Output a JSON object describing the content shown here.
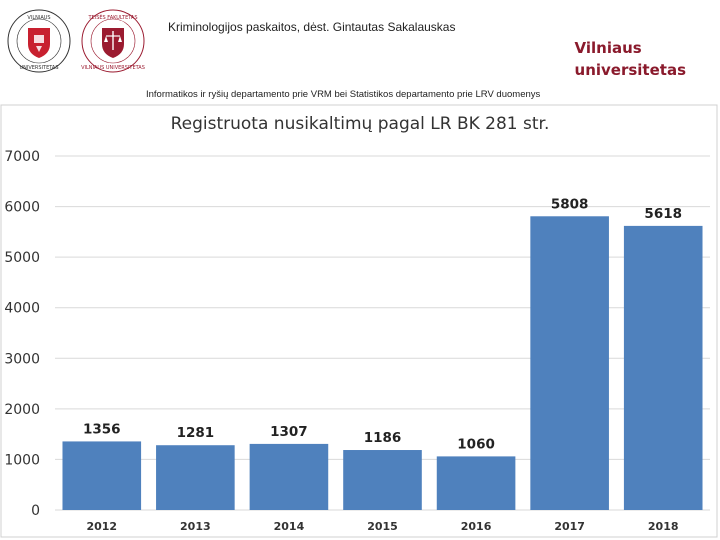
{
  "header": {
    "lecture": "Kriminologijos paskaitos, dėst. Gintautas Sakalauskas",
    "brand_line1": "Vilniaus",
    "brand_line2": "universitetas",
    "source": "Informatikos ir ryšių departamento prie VRM bei Statistikos departamento prie LRV duomenys",
    "logo1_text": "VILNIAUS UNIVERSITETAS",
    "logo2_text": "TEISĖS FAKULTETAS"
  },
  "colors": {
    "bar": "#4f81bd",
    "brand": "#8a1a2c",
    "logo1_shield": "#c8202f",
    "logo2_shield": "#9b1b30"
  },
  "chart_data": {
    "type": "bar",
    "title": "Registruota nusikaltimų pagal LR BK 281 str.",
    "categories": [
      "2012",
      "2013",
      "2014",
      "2015",
      "2016",
      "2017",
      "2018"
    ],
    "values": [
      1356,
      1281,
      1307,
      1186,
      1060,
      5808,
      5618
    ],
    "ylim": [
      0,
      7000
    ],
    "yticks": [
      0,
      1000,
      2000,
      3000,
      4000,
      5000,
      6000,
      7000
    ],
    "grid": true,
    "xlabel": "",
    "ylabel": ""
  }
}
